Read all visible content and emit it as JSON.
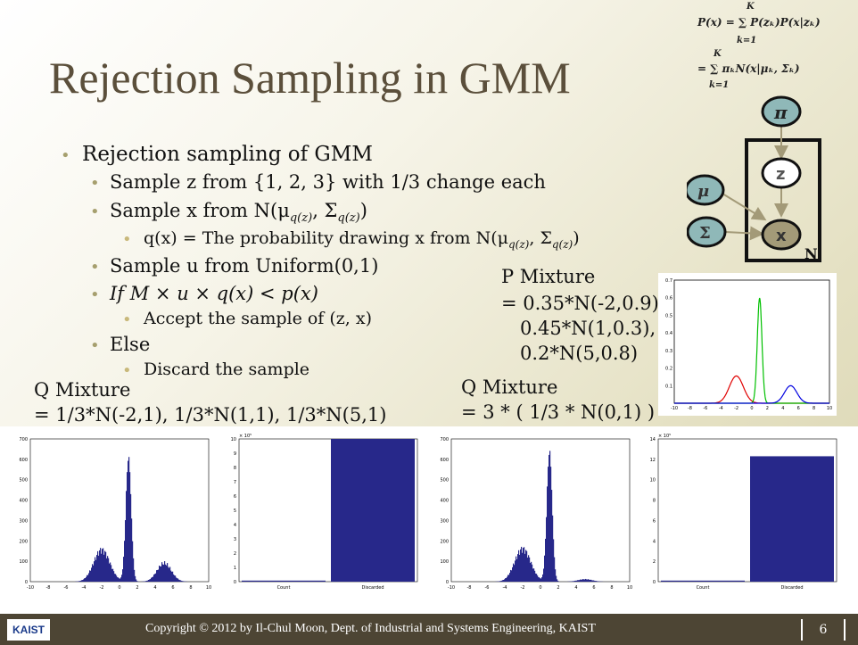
{
  "slide": {
    "title": "Rejection Sampling in GMM",
    "formula_top": "P(x) = ∑ P(zₖ)P(x|zₖ)",
    "formula_top_upper": "K",
    "formula_top_lower": "k=1",
    "formula_bottom": "= ∑ πₖN(x|μₖ, Σₖ)",
    "formula_bottom_upper": "K",
    "formula_bottom_lower": "k=1",
    "bullets": {
      "b1": "Rejection sampling of GMM",
      "b1_1": "Sample z from {1, 2, 3} with 1/3 change each",
      "b1_2": "Sample x from N(μ",
      "b1_2_sub": "q(z)",
      "b1_2_mid": ", Σ",
      "b1_2_end": ")",
      "b1_2_1": "q(x) = The probability drawing x from N(μ",
      "b1_2_1_sub": "q(z)",
      "b1_2_1_mid": ", Σ",
      "b1_2_1_end": ")",
      "b1_3": "Sample u from Uniform(0,1)",
      "b1_4": "If M × u × q(x) < p(x)",
      "b1_4_1": "Accept the sample of (z, x)",
      "b1_5": "Else",
      "b1_5_1": "Discard the sample"
    },
    "p_mixture": [
      "P Mixture",
      "= 0.35*N(-2,0.9),",
      "0.45*N(1,0.3),",
      "0.2*N(5,0.8)"
    ],
    "q_mixture_left": [
      "Q Mixture",
      "= 1/3*N(-2,1), 1/3*N(1,1), 1/3*N(5,1)"
    ],
    "q_mixture_right": [
      "Q Mixture",
      "= 3 * ( 1/3 * N(0,1) )"
    ],
    "graph": {
      "pi": "π",
      "z": "z",
      "x": "x",
      "mu": "μ",
      "sigma": "Σ",
      "plate": "N"
    },
    "footer": {
      "logo": "KAIST",
      "copyright": "Copyright © 2012 by Il-Chul Moon, Dept. of Industrial and Systems Engineering, KAIST",
      "page": "6"
    },
    "colors": {
      "footer": "#4d4534",
      "title": "#5b4f3b",
      "node": "#8fb8b8",
      "bar": "#27288a"
    }
  },
  "chart_data": [
    {
      "type": "line",
      "x_ticks": [
        "-10",
        "-8",
        "-6",
        "-4",
        "-2",
        "0",
        "2",
        "4",
        "6",
        "8",
        "10"
      ],
      "y_ticks": [
        "0.1",
        "0.2",
        "0.3",
        "0.4",
        "0.5",
        "0.6",
        "0.7"
      ],
      "ylim": [
        0,
        0.7
      ],
      "xlim": [
        -10,
        10
      ],
      "series": [
        {
          "color": "#e00000",
          "mu": -2,
          "sigma": 0.9,
          "weight": 0.35
        },
        {
          "color": "#00c000",
          "mu": 1,
          "sigma": 0.3,
          "weight": 0.45
        },
        {
          "color": "#0000e0",
          "mu": 5,
          "sigma": 0.8,
          "weight": 0.2
        }
      ]
    },
    {
      "type": "bar",
      "description": "histogram of accepted samples (Q = 3 component mixture)",
      "x_ticks": [
        "-10",
        "-8",
        "-6",
        "-4",
        "-2",
        "0",
        "2",
        "4",
        "6",
        "8",
        "10"
      ],
      "y_ticks": [
        "0",
        "100",
        "200",
        "300",
        "400",
        "500",
        "600",
        "700"
      ],
      "ylim": [
        0,
        700
      ],
      "xlim": [
        -10,
        10
      ],
      "peaks": [
        {
          "mu": -2,
          "sigma": 0.9,
          "peak": 155
        },
        {
          "mu": 1,
          "sigma": 0.3,
          "peak": 610
        },
        {
          "mu": 5,
          "sigma": 0.8,
          "peak": 90
        }
      ]
    },
    {
      "type": "bar",
      "categories": [
        "Count",
        "Discarded"
      ],
      "values": [
        0.05,
        10
      ],
      "y_ticks": [
        "0",
        "1",
        "2",
        "3",
        "4",
        "5",
        "6",
        "7",
        "8",
        "9",
        "10"
      ],
      "ylim": [
        0,
        10
      ],
      "scale_label": "× 10⁵"
    },
    {
      "type": "bar",
      "description": "histogram of accepted samples (Q = 3*(1/3*N(0,1)))",
      "x_ticks": [
        "-10",
        "-8",
        "-6",
        "-4",
        "-2",
        "0",
        "2",
        "4",
        "6",
        "8",
        "10"
      ],
      "y_ticks": [
        "0",
        "100",
        "200",
        "300",
        "400",
        "500",
        "600",
        "700"
      ],
      "ylim": [
        0,
        700
      ],
      "xlim": [
        -10,
        10
      ],
      "peaks": [
        {
          "mu": -2,
          "sigma": 0.9,
          "peak": 160
        },
        {
          "mu": 1,
          "sigma": 0.3,
          "peak": 640
        },
        {
          "mu": 5,
          "sigma": 0.8,
          "peak": 12
        }
      ]
    },
    {
      "type": "bar",
      "categories": [
        "Count",
        "Discarded"
      ],
      "values": [
        0.05,
        12.3
      ],
      "y_ticks": [
        "0",
        "2",
        "4",
        "6",
        "8",
        "10",
        "12",
        "14"
      ],
      "ylim": [
        0,
        14
      ],
      "scale_label": "× 10⁵"
    }
  ]
}
